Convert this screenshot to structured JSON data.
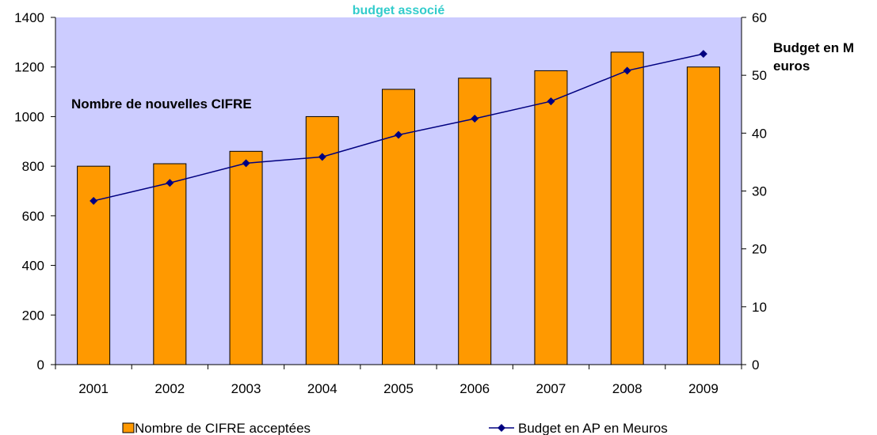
{
  "chart_data": {
    "type": "bar",
    "title": "budget associé",
    "categories": [
      "2001",
      "2002",
      "2003",
      "2004",
      "2005",
      "2006",
      "2007",
      "2008",
      "2009"
    ],
    "series": [
      {
        "name": "Nombre de CIFRE acceptées",
        "type": "bar",
        "axis": "left",
        "values": [
          800,
          810,
          860,
          1000,
          1110,
          1155,
          1185,
          1260,
          1200
        ]
      },
      {
        "name": "Budget en AP en Meuros",
        "type": "line",
        "axis": "right",
        "marker": "diamond",
        "values": [
          28.3,
          31.4,
          34.8,
          35.9,
          39.7,
          42.5,
          45.5,
          50.8,
          53.7
        ]
      }
    ],
    "y_left": {
      "label": "Nombre de nouvelles CIFRE",
      "ylim": [
        0,
        1400
      ],
      "ticks": [
        0,
        200,
        400,
        600,
        800,
        1000,
        1200,
        1400
      ]
    },
    "y_right": {
      "label_lines": [
        "Budget en M",
        "euros"
      ],
      "ylim": [
        0,
        60
      ],
      "ticks": [
        0,
        10,
        20,
        30,
        40,
        50,
        60
      ]
    },
    "grid": false,
    "legend_position": "bottom",
    "colors": {
      "plot_background": "#ccccff",
      "bar_fill": "#ff9900",
      "line": "#000080",
      "title": "#33cccc"
    }
  }
}
